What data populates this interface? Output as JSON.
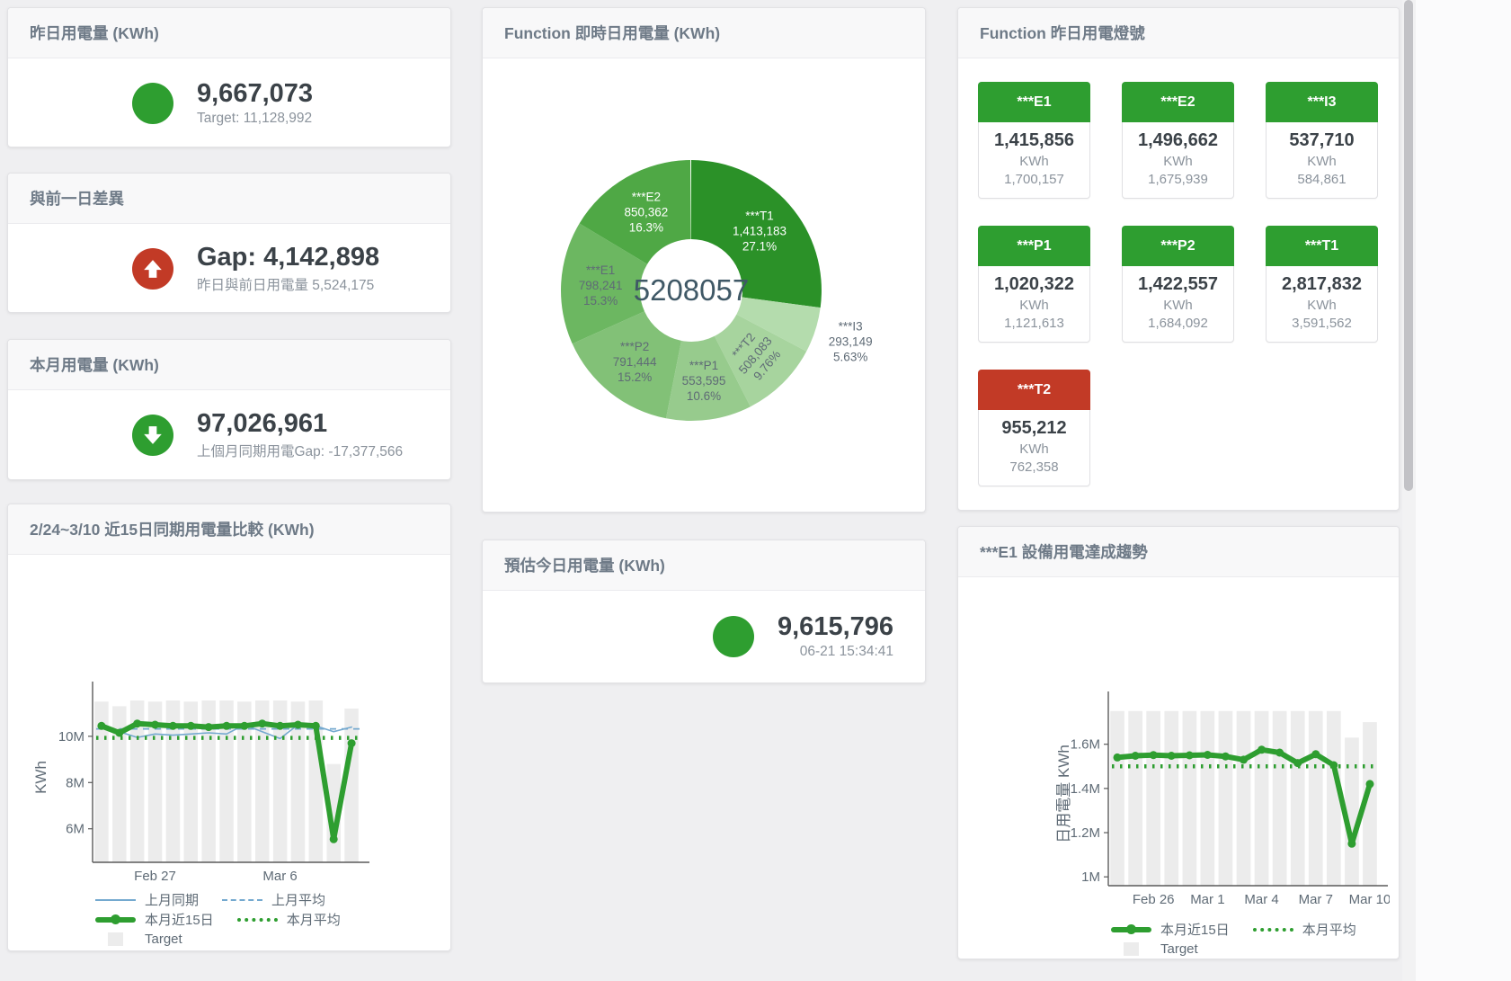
{
  "stat_cards": [
    {
      "title": "昨日用電量 (KWh)",
      "icon": "circle",
      "icon_color": "#2e9e30",
      "value": "9,667,073",
      "subtitle": "Target: 11,128,992"
    },
    {
      "title": "與前一日差異",
      "icon": "arrow-up",
      "icon_color": "#c23a26",
      "value": "Gap: 4,142,898",
      "subtitle": "昨日與前日用電量 5,524,175"
    },
    {
      "title": "本月用電量 (KWh)",
      "icon": "arrow-down",
      "icon_color": "#2e9e30",
      "value": "97,026,961",
      "subtitle": "上個月同期用電Gap: -17,377,566"
    },
    {
      "title": "預估今日用電量 (KWh)",
      "icon": "circle",
      "icon_color": "#2e9e30",
      "value": "9,615,796",
      "subtitle": "06-21 15:34:41"
    }
  ],
  "lights": {
    "title": "Function 昨日用電燈號",
    "tiles": [
      {
        "label": "***E1",
        "value": "1,415,856",
        "unit": "KWh",
        "target": "1,700,157",
        "status_color": "#2e9e30"
      },
      {
        "label": "***E2",
        "value": "1,496,662",
        "unit": "KWh",
        "target": "1,675,939",
        "status_color": "#2e9e30"
      },
      {
        "label": "***I3",
        "value": "537,710",
        "unit": "KWh",
        "target": "584,861",
        "status_color": "#2e9e30"
      },
      {
        "label": "***P1",
        "value": "1,020,322",
        "unit": "KWh",
        "target": "1,121,613",
        "status_color": "#2e9e30"
      },
      {
        "label": "***P2",
        "value": "1,422,557",
        "unit": "KWh",
        "target": "1,684,092",
        "status_color": "#2e9e30"
      },
      {
        "label": "***T1",
        "value": "2,817,832",
        "unit": "KWh",
        "target": "3,591,562",
        "status_color": "#2e9e30"
      },
      {
        "label": "***T2",
        "value": "955,212",
        "unit": "KWh",
        "target": "762,358",
        "status_color": "#c23a26"
      }
    ]
  },
  "chart_data": [
    {
      "type": "pie",
      "title": "Function 即時日用電量 (KWh)",
      "center_value": "5208057",
      "center_color": "#3f5866",
      "slices": [
        {
          "name": "***T1",
          "value": "1,413,183",
          "pct": "27.1%",
          "share": 27.1,
          "color": "#2b9128",
          "label_color": "#ffffff"
        },
        {
          "name": "***I3",
          "value": "293,149",
          "pct": "5.63%",
          "share": 5.63,
          "color": "#b4dcad",
          "label_color": "#5f6b76",
          "outside": true
        },
        {
          "name": "***T2",
          "value": "508,083",
          "pct": "9.76%",
          "share": 9.76,
          "color": "#a7d49e",
          "label_color": "#5f6b76",
          "rotate": -50
        },
        {
          "name": "***P1",
          "value": "553,595",
          "pct": "10.6%",
          "share": 10.6,
          "color": "#97cb8d",
          "label_color": "#5f6b76"
        },
        {
          "name": "***P2",
          "value": "791,444",
          "pct": "15.2%",
          "share": 15.2,
          "color": "#82c177",
          "label_color": "#5f6b76"
        },
        {
          "name": "***E1",
          "value": "798,241",
          "pct": "15.3%",
          "share": 15.3,
          "color": "#6cb761",
          "label_color": "#5f6b76"
        },
        {
          "name": "***E2",
          "value": "850,362",
          "pct": "16.3%",
          "share": 16.3,
          "color": "#4fa845",
          "label_color": "#ffffff"
        }
      ]
    },
    {
      "type": "line",
      "title": "2/24~3/10 近15日同期用電量比較 (KWh)",
      "ylabel": "KWh",
      "ylim": [
        4.55,
        11.9
      ],
      "yticks": [
        {
          "v": 6,
          "label": "6M"
        },
        {
          "v": 8,
          "label": "8M"
        },
        {
          "v": 10,
          "label": "10M"
        }
      ],
      "n": 15,
      "xticks": [
        {
          "i": 3,
          "label": "Feb 27"
        },
        {
          "i": 10,
          "label": "Mar 6"
        }
      ],
      "bars": {
        "name": "Target",
        "color": "#ececec",
        "values": [
          11.5,
          11.3,
          11.55,
          11.5,
          11.55,
          11.5,
          11.55,
          11.55,
          11.5,
          11.55,
          11.55,
          11.5,
          11.55,
          8.8,
          11.2
        ]
      },
      "series": [
        {
          "name": "上月同期",
          "color": "#74a9cf",
          "style": "solid",
          "width": 1.6,
          "values": [
            10.55,
            10.2,
            9.95,
            10.1,
            10.05,
            10.1,
            10.15,
            10.1,
            10.5,
            10.2,
            9.9,
            10.5,
            10.45,
            10.2,
            10.4
          ]
        },
        {
          "name": "上月平均",
          "color": "#74a9cf",
          "style": "dashed",
          "width": 1.8,
          "const": 10.32
        },
        {
          "name": "本月平均",
          "color": "#2e9e30",
          "style": "dotted",
          "width": 4.5,
          "const": 9.93
        },
        {
          "name": "本月近15日",
          "color": "#2e9e30",
          "style": "solid",
          "width": 6,
          "marker": 4.5,
          "values": [
            10.45,
            10.15,
            10.55,
            10.5,
            10.45,
            10.45,
            10.4,
            10.45,
            10.45,
            10.55,
            10.45,
            10.5,
            10.45,
            5.55,
            9.7
          ]
        }
      ],
      "legend_rows": [
        [
          {
            "name": "上月同期",
            "swatch": "sw-line",
            "color": "#74a9cf"
          },
          {
            "name": "上月平均",
            "swatch": "sw-dashed",
            "color": "#74a9cf"
          }
        ],
        [
          {
            "name": "本月近15日",
            "swatch": "sw-thick",
            "color": "#2e9e30"
          },
          {
            "name": "本月平均",
            "swatch": "sw-dotted",
            "color": "#2e9e30"
          }
        ],
        [
          {
            "name": "Target",
            "swatch": "sw-bar",
            "color": "#ececec"
          }
        ]
      ]
    },
    {
      "type": "line",
      "title": "***E1 設備用電達成趨勢",
      "ylabel": "日用電量 KWh",
      "ylim": [
        0.96,
        1.79
      ],
      "yticks": [
        {
          "v": 1,
          "label": "1M"
        },
        {
          "v": 1.2,
          "label": "1.2M"
        },
        {
          "v": 1.4,
          "label": "1.4M"
        },
        {
          "v": 1.6,
          "label": "1.6M"
        }
      ],
      "n": 15,
      "xticks": [
        {
          "i": 2,
          "label": "Feb 26"
        },
        {
          "i": 5,
          "label": "Mar 1"
        },
        {
          "i": 8,
          "label": "Mar 4"
        },
        {
          "i": 11,
          "label": "Mar 7"
        },
        {
          "i": 14,
          "label": "Mar 10"
        }
      ],
      "bars": {
        "name": "Target",
        "color": "#ececec",
        "values": [
          1.75,
          1.75,
          1.75,
          1.75,
          1.75,
          1.75,
          1.75,
          1.75,
          1.75,
          1.75,
          1.75,
          1.75,
          1.75,
          1.63,
          1.7
        ]
      },
      "series": [
        {
          "name": "本月平均",
          "color": "#2e9e30",
          "style": "dotted",
          "width": 4.5,
          "const": 1.5
        },
        {
          "name": "本月近15日",
          "color": "#2e9e30",
          "style": "solid",
          "width": 6,
          "marker": 4.5,
          "values": [
            1.54,
            1.548,
            1.551,
            1.548,
            1.55,
            1.552,
            1.545,
            1.53,
            1.575,
            1.562,
            1.515,
            1.555,
            1.505,
            1.15,
            1.42
          ]
        }
      ],
      "legend_rows": [
        [
          {
            "name": "本月近15日",
            "swatch": "sw-thick",
            "color": "#2e9e30"
          },
          {
            "name": "本月平均",
            "swatch": "sw-dotted",
            "color": "#2e9e30"
          }
        ],
        [
          {
            "name": "Target",
            "swatch": "sw-bar",
            "color": "#ececec"
          }
        ]
      ]
    }
  ]
}
